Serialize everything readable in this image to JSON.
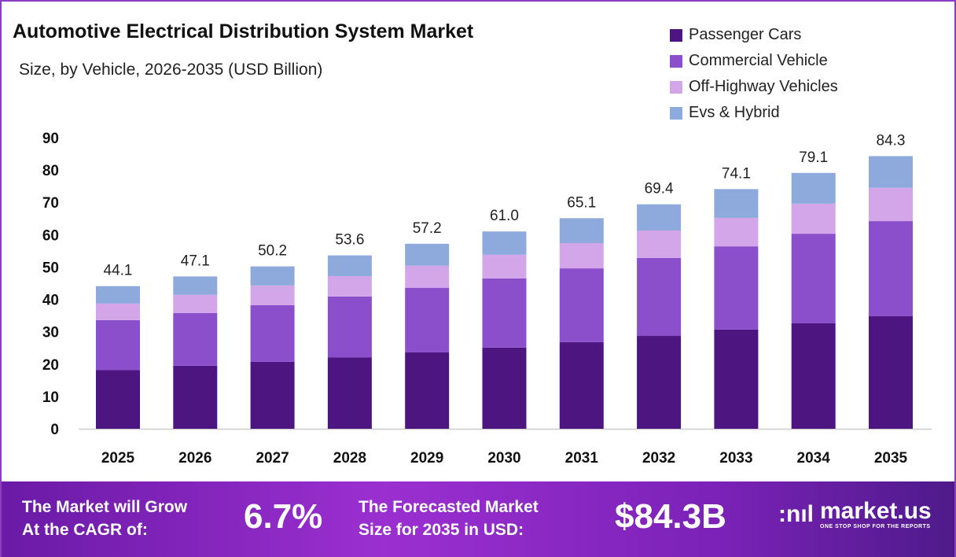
{
  "chart_data": {
    "type": "bar",
    "stacked": true,
    "title": "Automotive Electrical Distribution System Market",
    "subtitle": "Size, by Vehicle, 2026-2035 (USD Billion)",
    "categories": [
      "2025",
      "2026",
      "2027",
      "2028",
      "2029",
      "2030",
      "2031",
      "2032",
      "2033",
      "2034",
      "2035"
    ],
    "series": [
      {
        "name": "Passenger Cars",
        "color": "#4d1580",
        "values": [
          18.2,
          19.5,
          20.7,
          22.1,
          23.6,
          25.1,
          26.8,
          28.7,
          30.7,
          32.6,
          34.8
        ]
      },
      {
        "name": "Commercial Vehicle",
        "color": "#8b4fcc",
        "values": [
          15.4,
          16.3,
          17.5,
          18.8,
          20.0,
          21.4,
          22.8,
          24.1,
          25.7,
          27.7,
          29.4
        ]
      },
      {
        "name": "Off-Highway Vehicles",
        "color": "#d3a6ea",
        "values": [
          5.1,
          5.6,
          6.1,
          6.3,
          6.8,
          7.3,
          7.8,
          8.5,
          8.8,
          9.3,
          10.3
        ]
      },
      {
        "name": "Evs & Hybrid",
        "color": "#8ea9dc",
        "values": [
          5.4,
          5.7,
          5.9,
          6.4,
          6.8,
          7.2,
          7.7,
          8.1,
          8.9,
          9.5,
          9.8
        ]
      }
    ],
    "totals": [
      "44.1",
      "47.1",
      "50.2",
      "53.6",
      "57.2",
      "61.0",
      "65.1",
      "69.4",
      "74.1",
      "79.1",
      "84.3"
    ],
    "yticks": [
      0,
      10,
      20,
      30,
      40,
      50,
      60,
      70,
      80,
      90
    ],
    "ylim": [
      0,
      90
    ],
    "grid": false,
    "legend": "top-right"
  },
  "footer": {
    "cagr_label_1": "The Market will Grow",
    "cagr_label_2": "At the CAGR of:",
    "cagr_value": "6.7%",
    "size_label_1": "The Forecasted Market",
    "size_label_2": "Size for 2035 in USD:",
    "size_value": "$84.3B",
    "logo_name": "market.us",
    "logo_tagline": "ONE STOP SHOP FOR THE REPORTS"
  }
}
